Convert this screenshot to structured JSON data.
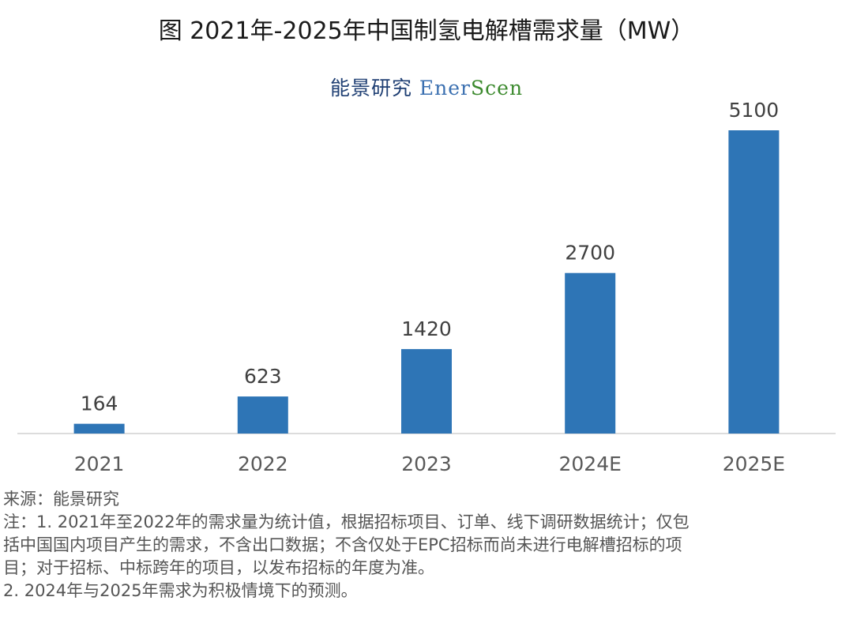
{
  "chart_data": {
    "type": "bar",
    "title": "图  2021年-2025年中国制氢电解槽需求量（MW）",
    "categories": [
      "2021",
      "2022",
      "2023",
      "2024E",
      "2025E"
    ],
    "values": [
      164,
      623,
      1420,
      2700,
      5100
    ],
    "data_labels": [
      "164",
      "623",
      "1420",
      "2700",
      "5100"
    ],
    "xlabel": "",
    "ylabel": "",
    "ylim": [
      0,
      5100
    ],
    "grid": false,
    "bar_color": "#2e75b6"
  },
  "logo": {
    "cn": "能景研究",
    "en_a": "Ener",
    "en_b": "S",
    "en_c": "cen"
  },
  "notes": {
    "source": "来源：能景研究",
    "note_lines": [
      "注：1. 2021年至2022年的需求量为统计值，根据招标项目、订单、线下调研数据统计；仅包",
      "括中国国内项目产生的需求，不含出口数据；不含仅处于EPC招标而尚未进行电解槽招标的项",
      "目；对于招标、中标跨年的项目，以发布招标的年度为准。",
      "2. 2024年与2025年需求为积极情境下的预测。"
    ]
  }
}
